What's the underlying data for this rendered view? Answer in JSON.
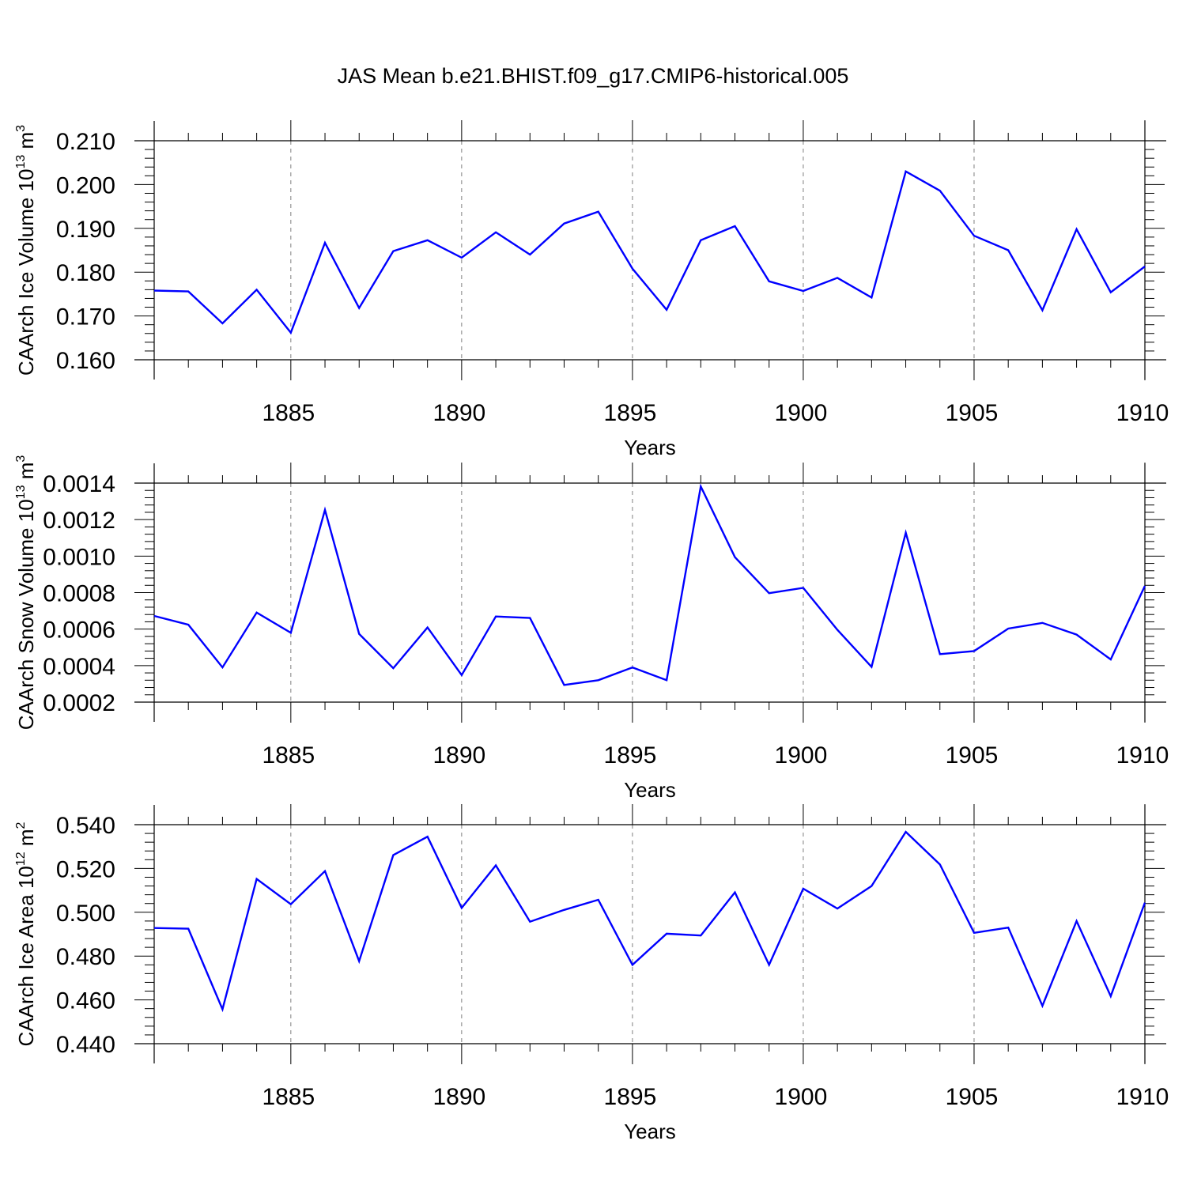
{
  "title": "JAS Mean b.e21.BHIST.f09_g17.CMIP6-historical.005",
  "colors": {
    "line": "#0000ff",
    "axis": "#000000",
    "grid": "#7f7f7f"
  },
  "chart_data": [
    {
      "type": "line",
      "title": "JAS Mean b.e21.BHIST.f09_g17.CMIP6-historical.005",
      "ylabel": {
        "text": "CAArch Ice Volume 10",
        "exp": "13",
        "unit": " m",
        "unit_exp": "3"
      },
      "xlabel": "Years",
      "xlim": [
        1881,
        1910
      ],
      "ylim": [
        0.16,
        0.21
      ],
      "yticks": [
        "0.160",
        "0.170",
        "0.180",
        "0.190",
        "0.200",
        "0.210"
      ],
      "xticks": [
        "1885",
        "1890",
        "1895",
        "1900",
        "1905",
        "1910"
      ],
      "grid": "vertical dashed at major x ticks",
      "series": [
        {
          "name": "CAArch Ice Volume",
          "values": [
            0.1758,
            0.1756,
            0.1683,
            0.176,
            0.1662,
            0.1867,
            0.1718,
            0.1848,
            0.1873,
            0.1833,
            0.1891,
            0.184,
            0.1911,
            0.1938,
            0.1808,
            0.1714,
            0.1873,
            0.1905,
            0.1779,
            0.1757,
            0.1787,
            0.1742,
            0.203,
            0.1986,
            0.1883,
            0.185,
            0.1713,
            0.1898,
            0.1754,
            0.1813
          ]
        }
      ]
    },
    {
      "type": "line",
      "ylabel": {
        "text": "CAArch Snow Volume 10",
        "exp": "13",
        "unit": " m",
        "unit_exp": "3"
      },
      "xlabel": "Years",
      "xlim": [
        1881,
        1910
      ],
      "ylim": [
        0.0002,
        0.0014
      ],
      "yticks": [
        "0.0002",
        "0.0004",
        "0.0006",
        "0.0008",
        "0.0010",
        "0.0012",
        "0.0014"
      ],
      "xticks": [
        "1885",
        "1890",
        "1895",
        "1900",
        "1905",
        "1910"
      ],
      "grid": "vertical dashed at major x ticks",
      "series": [
        {
          "name": "CAArch Snow Volume",
          "values": [
            0.000672,
            0.000624,
            0.00039,
            0.000691,
            0.00058,
            0.001253,
            0.000574,
            0.000386,
            0.000609,
            0.000348,
            0.000669,
            0.000661,
            0.000294,
            0.00032,
            0.00039,
            0.00032,
            0.001382,
            0.000994,
            0.000797,
            0.000826,
            0.000596,
            0.000393,
            0.001128,
            0.000463,
            0.00048,
            0.000603,
            0.000634,
            0.00057,
            0.000434,
            0.000837
          ]
        }
      ]
    },
    {
      "type": "line",
      "ylabel": {
        "text": "CAArch Ice Area 10",
        "exp": "12",
        "unit": " m",
        "unit_exp": "2"
      },
      "xlabel": "Years",
      "xlim": [
        1881,
        1910
      ],
      "ylim": [
        0.44,
        0.54
      ],
      "yticks": [
        "0.440",
        "0.460",
        "0.480",
        "0.500",
        "0.520",
        "0.540"
      ],
      "xticks": [
        "1885",
        "1890",
        "1895",
        "1900",
        "1905",
        "1910"
      ],
      "grid": "vertical dashed at major x ticks",
      "series": [
        {
          "name": "CAArch Ice Area",
          "values": [
            0.4928,
            0.4925,
            0.4557,
            0.5152,
            0.5037,
            0.5188,
            0.4777,
            0.5261,
            0.5345,
            0.502,
            0.5214,
            0.4957,
            0.5011,
            0.5057,
            0.476,
            0.4902,
            0.4894,
            0.5091,
            0.476,
            0.5108,
            0.5017,
            0.512,
            0.5367,
            0.5218,
            0.4906,
            0.493,
            0.4573,
            0.496,
            0.4617,
            0.5044
          ]
        }
      ]
    }
  ]
}
